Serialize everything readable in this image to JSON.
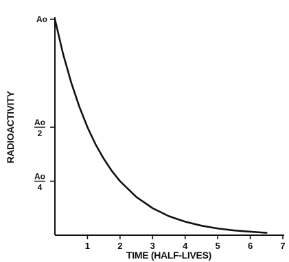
{
  "chart_data": {
    "type": "line",
    "title": "",
    "xlabel": "TIME (HALF-LIVES)",
    "ylabel": "RADIOACTIVITY",
    "xlim": [
      0,
      7
    ],
    "ylim": [
      0,
      1
    ],
    "grid": false,
    "x_ticks": [
      1,
      2,
      3,
      4,
      5,
      6,
      7
    ],
    "y_ticks": [
      {
        "value": 1.0,
        "label": "Ao",
        "fraction": false
      },
      {
        "value": 0.5,
        "numerator": "Ao",
        "denominator": "2",
        "fraction": true
      },
      {
        "value": 0.25,
        "numerator": "Ao",
        "denominator": "4",
        "fraction": true
      }
    ],
    "series": [
      {
        "x": [
          0,
          0.25,
          0.5,
          0.75,
          1,
          1.25,
          1.5,
          1.75,
          2,
          2.5,
          3,
          3.5,
          4,
          4.5,
          5,
          5.5,
          6,
          6.5
        ],
        "values": [
          1.0,
          0.84,
          0.707,
          0.595,
          0.5,
          0.42,
          0.354,
          0.297,
          0.25,
          0.177,
          0.125,
          0.088,
          0.0625,
          0.044,
          0.031,
          0.022,
          0.016,
          0.011
        ]
      }
    ],
    "colors": {
      "line": "#111111",
      "axis": "#111111"
    }
  }
}
